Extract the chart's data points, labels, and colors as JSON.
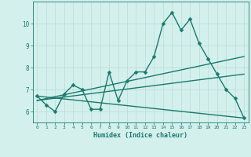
{
  "xlabel": "Humidex (Indice chaleur)",
  "x_values": [
    0,
    1,
    2,
    3,
    4,
    5,
    6,
    7,
    8,
    9,
    10,
    11,
    12,
    13,
    14,
    15,
    16,
    17,
    18,
    19,
    20,
    21,
    22,
    23
  ],
  "line1": [
    6.7,
    6.3,
    6.0,
    6.8,
    7.2,
    7.0,
    6.1,
    6.1,
    7.8,
    6.5,
    7.4,
    7.8,
    7.8,
    8.5,
    10.0,
    10.5,
    9.7,
    10.2,
    9.1,
    8.4,
    7.7,
    7.0,
    6.6,
    5.7
  ],
  "trend1_x": [
    0,
    23
  ],
  "trend1_y": [
    6.7,
    5.7
  ],
  "trend2_x": [
    0,
    23
  ],
  "trend2_y": [
    6.5,
    8.5
  ],
  "trend3_x": [
    0,
    23
  ],
  "trend3_y": [
    6.5,
    7.7
  ],
  "ylim": [
    5.5,
    11.0
  ],
  "xlim": [
    -0.5,
    23.5
  ],
  "yticks": [
    6,
    7,
    8,
    9,
    10
  ],
  "color": "#1a7a6e",
  "bg_color": "#d4f0ec",
  "grid_color": "#b8dcd8",
  "line_width": 1.0,
  "marker_size": 2.5
}
